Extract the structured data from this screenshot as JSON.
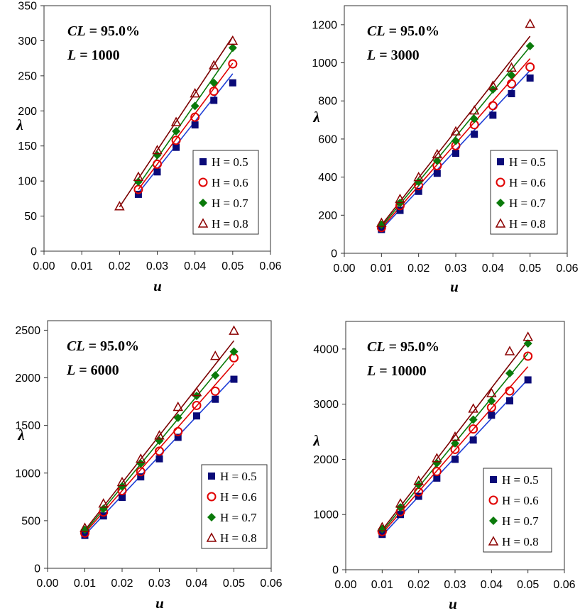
{
  "chart_data": [
    {
      "type": "scatter",
      "xlabel": "u",
      "ylabel": "λ",
      "xlim": [
        0,
        0.06
      ],
      "ylim": [
        0,
        350
      ],
      "xticks": [
        "0.00",
        "0.01",
        "0.02",
        "0.03",
        "0.04",
        "0.05",
        "0.06"
      ],
      "yticks": [
        "0",
        "50",
        "100",
        "150",
        "200",
        "250",
        "300",
        "350"
      ],
      "annotations": [
        {
          "var": "CL",
          "text": " = 95.0%"
        },
        {
          "var": "L",
          "text": " = 1000"
        }
      ],
      "legend_position": "lower-right",
      "series": [
        {
          "name": "H = 0.5",
          "marker": "square",
          "color": "#0a0a78",
          "line_color": "#1f3fd6",
          "x": [
            0.025,
            0.03,
            0.035,
            0.04,
            0.045,
            0.05
          ],
          "y": [
            81,
            113,
            148,
            180,
            215,
            240
          ],
          "fit": {
            "x": [
              0.025,
              0.05
            ],
            "y": [
              83,
              253
            ]
          }
        },
        {
          "name": "H = 0.6",
          "marker": "circle",
          "color": "#e00000",
          "line_color": "#e00000",
          "x": [
            0.025,
            0.03,
            0.035,
            0.04,
            0.045,
            0.05
          ],
          "y": [
            88,
            124,
            158,
            191,
            228,
            267
          ],
          "fit": {
            "x": [
              0.025,
              0.05
            ],
            "y": [
              88,
              268
            ]
          }
        },
        {
          "name": "H = 0.7",
          "marker": "diamond",
          "color": "#0a7a0a",
          "line_color": "#0a7a0a",
          "x": [
            0.025,
            0.03,
            0.035,
            0.04,
            0.045,
            0.05
          ],
          "y": [
            99,
            137,
            171,
            207,
            240,
            290
          ],
          "fit": {
            "x": [
              0.025,
              0.05
            ],
            "y": [
              94,
              287
            ]
          }
        },
        {
          "name": "H = 0.8",
          "marker": "triangle",
          "color": "#8b0000",
          "line_color": "#7a0000",
          "x": [
            0.02,
            0.025,
            0.03,
            0.035,
            0.04,
            0.045,
            0.05
          ],
          "y": [
            64,
            106,
            144,
            184,
            225,
            265,
            300
          ],
          "fit": {
            "x": [
              0.02,
              0.05
            ],
            "y": [
              63,
              306
            ]
          }
        }
      ]
    },
    {
      "type": "scatter",
      "xlabel": "u",
      "ylabel": "λ",
      "xlim": [
        0,
        0.06
      ],
      "ylim": [
        0,
        1300
      ],
      "xticks": [
        "0.00",
        "0.01",
        "0.02",
        "0.03",
        "0.04",
        "0.05",
        "0.06"
      ],
      "yticks": [
        "0",
        "200",
        "400",
        "600",
        "800",
        "1000",
        "1200"
      ],
      "annotations": [
        {
          "var": "CL",
          "text": " = 95.0%"
        },
        {
          "var": "L",
          "text": " = 3000"
        }
      ],
      "legend_position": "lower-right",
      "series": [
        {
          "name": "H = 0.5",
          "marker": "square",
          "color": "#0a0a78",
          "line_color": "#1f3fd6",
          "x": [
            0.01,
            0.015,
            0.02,
            0.025,
            0.03,
            0.035,
            0.04,
            0.045,
            0.05
          ],
          "y": [
            125,
            225,
            325,
            420,
            525,
            625,
            725,
            838,
            920
          ],
          "fit": {
            "x": [
              0.01,
              0.05
            ],
            "y": [
              125,
              960
            ]
          }
        },
        {
          "name": "H = 0.6",
          "marker": "circle",
          "color": "#e00000",
          "line_color": "#e00000",
          "x": [
            0.01,
            0.015,
            0.02,
            0.025,
            0.03,
            0.035,
            0.04,
            0.045,
            0.05
          ],
          "y": [
            135,
            250,
            355,
            460,
            565,
            675,
            775,
            890,
            978
          ],
          "fit": {
            "x": [
              0.01,
              0.05
            ],
            "y": [
              132,
              1022
            ]
          }
        },
        {
          "name": "H = 0.7",
          "marker": "diamond",
          "color": "#0a7a0a",
          "line_color": "#0a7a0a",
          "x": [
            0.01,
            0.015,
            0.02,
            0.025,
            0.03,
            0.035,
            0.04,
            0.045,
            0.05
          ],
          "y": [
            150,
            265,
            375,
            485,
            590,
            705,
            860,
            935,
            1088
          ],
          "fit": {
            "x": [
              0.01,
              0.05
            ],
            "y": [
              140,
              1085
            ]
          }
        },
        {
          "name": "H = 0.8",
          "marker": "triangle",
          "color": "#8b0000",
          "line_color": "#7a0000",
          "x": [
            0.01,
            0.015,
            0.02,
            0.025,
            0.03,
            0.035,
            0.04,
            0.045,
            0.05
          ],
          "y": [
            160,
            285,
            400,
            520,
            640,
            750,
            880,
            975,
            1205
          ],
          "fit": {
            "x": [
              0.01,
              0.05
            ],
            "y": [
              148,
              1140
            ]
          }
        }
      ]
    },
    {
      "type": "scatter",
      "xlabel": "u",
      "ylabel": "λ",
      "xlim": [
        0,
        0.06
      ],
      "ylim": [
        0,
        2600
      ],
      "xticks": [
        "0.00",
        "0.01",
        "0.02",
        "0.03",
        "0.04",
        "0.05",
        "0.06"
      ],
      "yticks": [
        "0",
        "500",
        "1000",
        "1500",
        "2000",
        "2500"
      ],
      "annotations": [
        {
          "var": "CL",
          "text": " = 95.0%"
        },
        {
          "var": "L",
          "text": " = 6000"
        }
      ],
      "legend_position": "lower-right",
      "series": [
        {
          "name": "H = 0.5",
          "marker": "square",
          "color": "#0a0a78",
          "line_color": "#1f3fd6",
          "x": [
            0.01,
            0.015,
            0.02,
            0.025,
            0.03,
            0.035,
            0.04,
            0.045,
            0.05
          ],
          "y": [
            345,
            550,
            745,
            960,
            1150,
            1375,
            1600,
            1775,
            1985
          ],
          "fit": {
            "x": [
              0.01,
              0.05
            ],
            "y": [
              350,
              2010
            ]
          }
        },
        {
          "name": "H = 0.6",
          "marker": "circle",
          "color": "#e00000",
          "line_color": "#e00000",
          "x": [
            0.01,
            0.015,
            0.02,
            0.025,
            0.03,
            0.035,
            0.04,
            0.045,
            0.05
          ],
          "y": [
            370,
            590,
            815,
            1015,
            1230,
            1435,
            1710,
            1860,
            2210
          ],
          "fit": {
            "x": [
              0.01,
              0.05
            ],
            "y": [
              370,
              2150
            ]
          }
        },
        {
          "name": "H = 0.7",
          "marker": "diamond",
          "color": "#0a7a0a",
          "line_color": "#0a7a0a",
          "x": [
            0.01,
            0.015,
            0.02,
            0.025,
            0.03,
            0.035,
            0.04,
            0.045,
            0.05
          ],
          "y": [
            405,
            625,
            860,
            1100,
            1340,
            1580,
            1810,
            2025,
            2275
          ],
          "fit": {
            "x": [
              0.01,
              0.05
            ],
            "y": [
              385,
              2280
            ]
          }
        },
        {
          "name": "H = 0.8",
          "marker": "triangle",
          "color": "#8b0000",
          "line_color": "#7a0000",
          "x": [
            0.01,
            0.015,
            0.02,
            0.025,
            0.03,
            0.035,
            0.04,
            0.045,
            0.05
          ],
          "y": [
            425,
            680,
            905,
            1150,
            1395,
            1695,
            1850,
            2230,
            2495
          ],
          "fit": {
            "x": [
              0.01,
              0.05
            ],
            "y": [
              400,
              2390
            ]
          }
        }
      ]
    },
    {
      "type": "scatter",
      "xlabel": "u",
      "ylabel": "λ",
      "xlim": [
        0,
        0.06
      ],
      "ylim": [
        0,
        4500
      ],
      "xticks": [
        "0.00",
        "0.01",
        "0.02",
        "0.03",
        "0.04",
        "0.05",
        "0.06"
      ],
      "yticks": [
        "0",
        "1000",
        "2000",
        "3000",
        "4000"
      ],
      "annotations": [
        {
          "var": "CL",
          "text": " = 95.0%"
        },
        {
          "var": "L",
          "text": " = 10000"
        }
      ],
      "legend_position": "lower-right",
      "series": [
        {
          "name": "H = 0.5",
          "marker": "square",
          "color": "#0a0a78",
          "line_color": "#1f3fd6",
          "x": [
            0.01,
            0.015,
            0.02,
            0.025,
            0.03,
            0.035,
            0.04,
            0.045,
            0.05
          ],
          "y": [
            640,
            1000,
            1330,
            1660,
            2000,
            2350,
            2800,
            3060,
            3440
          ],
          "fit": {
            "x": [
              0.01,
              0.05
            ],
            "y": [
              620,
              3450
            ]
          }
        },
        {
          "name": "H = 0.6",
          "marker": "circle",
          "color": "#e00000",
          "line_color": "#e00000",
          "x": [
            0.01,
            0.015,
            0.02,
            0.025,
            0.03,
            0.035,
            0.04,
            0.045,
            0.05
          ],
          "y": [
            690,
            1050,
            1410,
            1780,
            2180,
            2550,
            2940,
            3240,
            3870
          ],
          "fit": {
            "x": [
              0.01,
              0.05
            ],
            "y": [
              660,
              3680
            ]
          }
        },
        {
          "name": "H = 0.7",
          "marker": "diamond",
          "color": "#0a7a0a",
          "line_color": "#0a7a0a",
          "x": [
            0.01,
            0.015,
            0.02,
            0.025,
            0.03,
            0.035,
            0.04,
            0.045,
            0.05
          ],
          "y": [
            740,
            1130,
            1540,
            1930,
            2290,
            2720,
            3060,
            3560,
            4100
          ],
          "fit": {
            "x": [
              0.01,
              0.05
            ],
            "y": [
              690,
              3920
            ]
          }
        },
        {
          "name": "H = 0.8",
          "marker": "triangle",
          "color": "#8b0000",
          "line_color": "#7a0000",
          "x": [
            0.01,
            0.015,
            0.02,
            0.025,
            0.03,
            0.035,
            0.04,
            0.045,
            0.05
          ],
          "y": [
            770,
            1200,
            1610,
            2020,
            2410,
            2920,
            3200,
            3960,
            4220
          ],
          "fit": {
            "x": [
              0.01,
              0.05
            ],
            "y": [
              720,
              4150
            ]
          }
        }
      ]
    }
  ]
}
